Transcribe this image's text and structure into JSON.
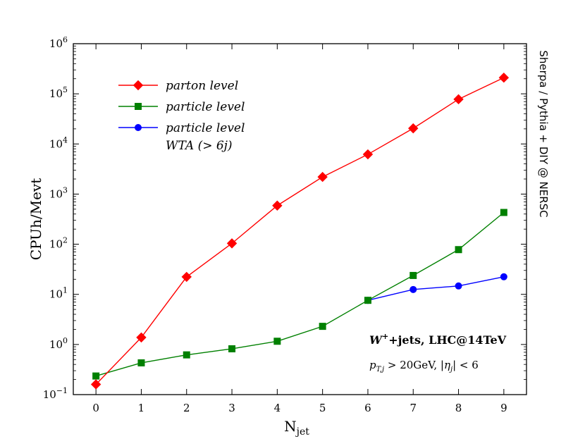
{
  "chart_data": {
    "type": "line",
    "yscale": "log",
    "xlabel": "N",
    "xlabel_sub": "jet",
    "ylabel": "CPUh/Mevt",
    "right_label": "Sherpa / Pythia + DIY @ NERSC",
    "annotation_title_main": "W",
    "annotation_title_sup": "+",
    "annotation_title_rest": "+jets, LHC@14TeV",
    "annotation_cuts": "p_{T,j} > 20GeV, |η_j| < 6",
    "annotation_cuts_parts": {
      "p": "p",
      "sub1": "T,j",
      "mid": " > 20GeV, |",
      "eta": "η",
      "sub2": "j",
      "end": "| < 6"
    },
    "xlim": [
      -0.5,
      9.5
    ],
    "ylim_exponent": [
      -1,
      6
    ],
    "xticks": [
      0,
      1,
      2,
      3,
      4,
      5,
      6,
      7,
      8,
      9
    ],
    "ytick_base": "10",
    "yticks_exponents": [
      "−1",
      "0",
      "1",
      "2",
      "3",
      "4",
      "5",
      "6"
    ],
    "legend_position": "upper-left",
    "series": [
      {
        "name": "parton level",
        "color": "#ff0000",
        "marker": "diamond",
        "x": [
          0,
          1,
          2,
          3,
          4,
          5,
          6,
          7,
          8,
          9
        ],
        "y": [
          0.16,
          1.38,
          22.3,
          104,
          590,
          2200,
          6200,
          20500,
          78000,
          210000
        ]
      },
      {
        "name": "particle level",
        "color": "#008000",
        "marker": "square",
        "x": [
          0,
          1,
          2,
          3,
          4,
          5,
          6,
          7,
          8,
          9
        ],
        "y": [
          0.235,
          0.43,
          0.62,
          0.82,
          1.16,
          2.3,
          7.6,
          23.8,
          78,
          430
        ]
      },
      {
        "name": "particle level",
        "name_line2": "WTA (> 6j)",
        "color": "#0000ff",
        "marker": "circle",
        "x": [
          6,
          7,
          8,
          9
        ],
        "y": [
          7.6,
          12.5,
          14.7,
          22.4
        ]
      }
    ]
  }
}
